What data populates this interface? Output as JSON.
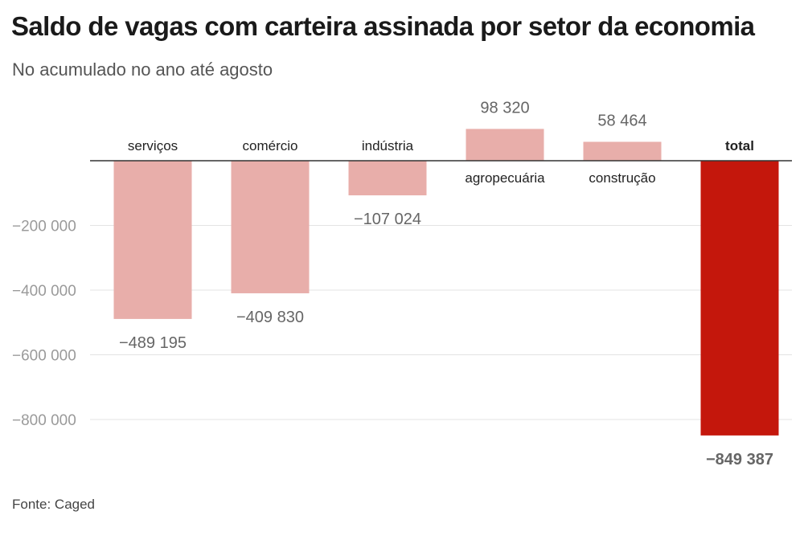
{
  "title": "Saldo de vagas com carteira assinada por setor da economia",
  "subtitle": "No acumulado no ano até agosto",
  "source": "Fonte: Caged",
  "colors": {
    "bar": "#e8aeaa",
    "highlight": "#c4170c",
    "axis": "#333333",
    "grid": "#e3e3e3"
  },
  "chart_data": {
    "type": "bar",
    "categories": [
      "serviços",
      "comércio",
      "indústria",
      "agropecuária",
      "construção",
      "total"
    ],
    "values": [
      -489195,
      -409830,
      -107024,
      98320,
      58464,
      -849387
    ],
    "value_labels": [
      "−489 195",
      "−409 830",
      "−107 024",
      "98 320",
      "58 464",
      "−849 387"
    ],
    "highlight": "total",
    "yticks": [
      -200000,
      -400000,
      -600000,
      -800000
    ],
    "ytick_labels": [
      "−200 000",
      "−400 000",
      "−600 000",
      "−800 000"
    ],
    "ylim": [
      -880000,
      120000
    ],
    "grid": true,
    "xlabel": "",
    "ylabel": ""
  }
}
